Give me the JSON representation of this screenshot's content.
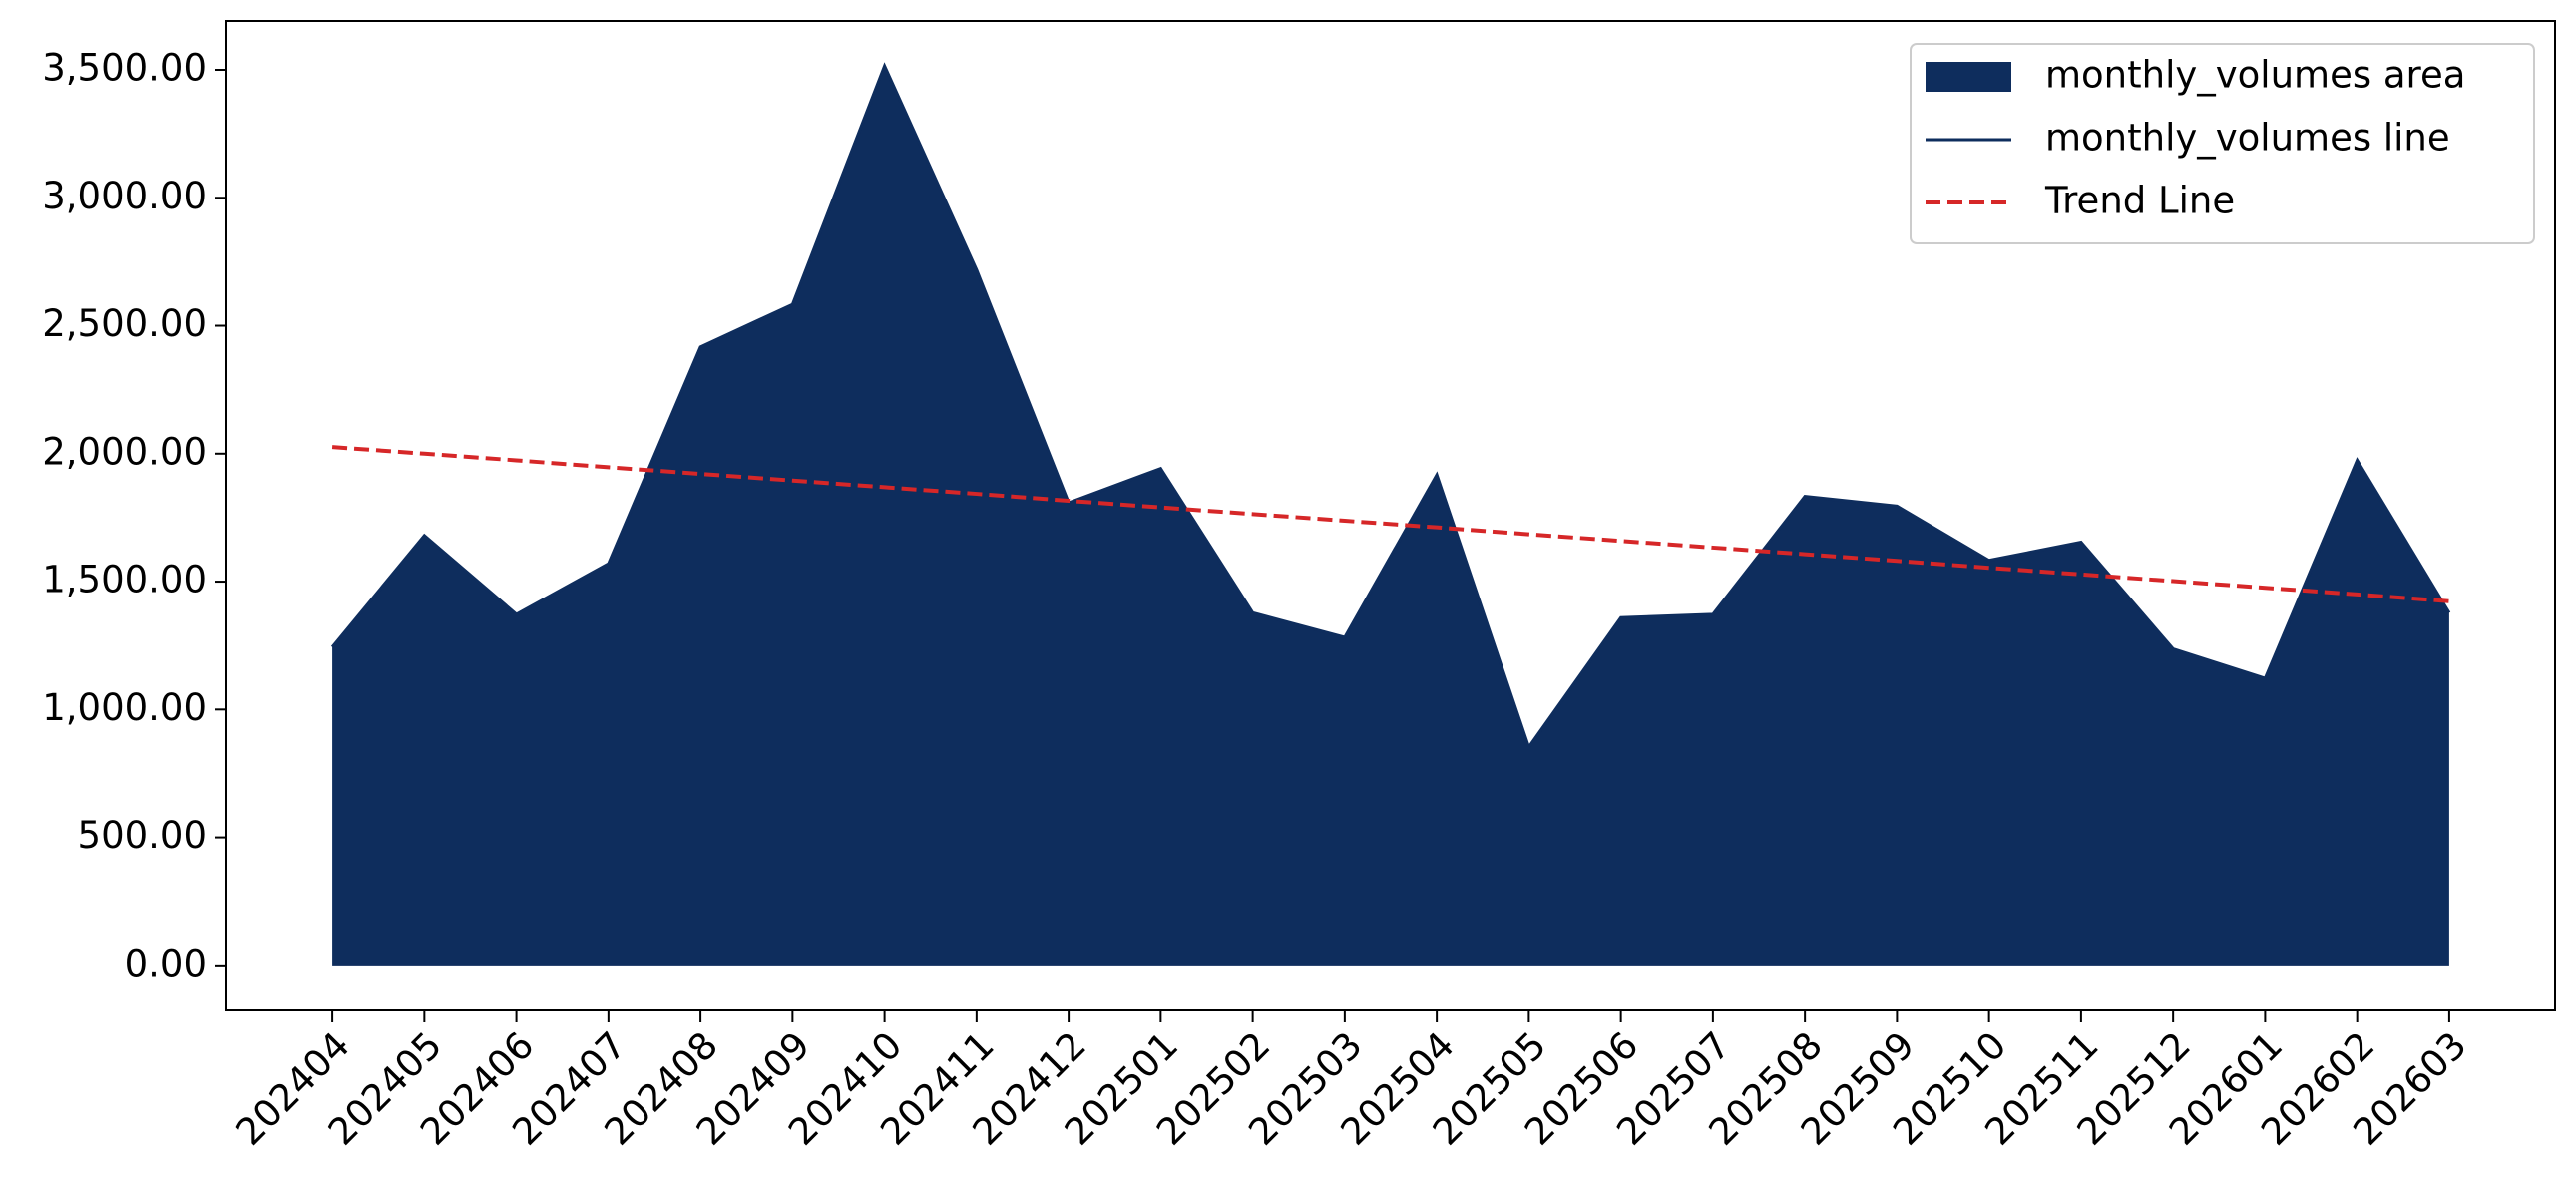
{
  "chart_data": {
    "type": "area",
    "categories": [
      "202404",
      "202405",
      "202406",
      "202407",
      "202408",
      "202409",
      "202410",
      "202411",
      "202412",
      "202501",
      "202502",
      "202503",
      "202504",
      "202505",
      "202506",
      "202507",
      "202508",
      "202509",
      "202510",
      "202511",
      "202512",
      "202601",
      "202602",
      "202603"
    ],
    "series": [
      {
        "name": "monthly_volumes area",
        "kind": "area",
        "color": "#0e2d5d",
        "values": [
          1244,
          1680,
          1372,
          1570,
          2417,
          2583,
          3515,
          2718,
          1808,
          1942,
          1378,
          1282,
          1917,
          853,
          1359,
          1372,
          1833,
          1795,
          1583,
          1654,
          1237,
          1122,
          1974,
          1378
        ]
      },
      {
        "name": "monthly_volumes line",
        "kind": "line",
        "color": "#0e2d5d",
        "values": [
          1244,
          1680,
          1372,
          1570,
          2417,
          2583,
          3515,
          2718,
          1808,
          1942,
          1378,
          1282,
          1917,
          853,
          1359,
          1372,
          1833,
          1795,
          1583,
          1654,
          1237,
          1122,
          1974,
          1378
        ]
      },
      {
        "name": "Trend Line",
        "kind": "dashed",
        "color": "#d62728",
        "values": [
          2026,
          2000,
          1974,
          1947,
          1921,
          1895,
          1869,
          1843,
          1816,
          1790,
          1764,
          1738,
          1712,
          1685,
          1659,
          1633,
          1607,
          1581,
          1554,
          1528,
          1502,
          1476,
          1450,
          1423
        ]
      }
    ],
    "ylim": [
      -176,
      3691
    ],
    "yticks": [
      {
        "value": 0,
        "label": "0.00"
      },
      {
        "value": 500,
        "label": "500.00"
      },
      {
        "value": 1000,
        "label": "1,000.00"
      },
      {
        "value": 1500,
        "label": "1,500.00"
      },
      {
        "value": 2000,
        "label": "2,000.00"
      },
      {
        "value": 2500,
        "label": "2,500.00"
      },
      {
        "value": 3000,
        "label": "3,000.00"
      },
      {
        "value": 3500,
        "label": "3,500.00"
      }
    ],
    "legend": "upper right",
    "grid": false
  }
}
